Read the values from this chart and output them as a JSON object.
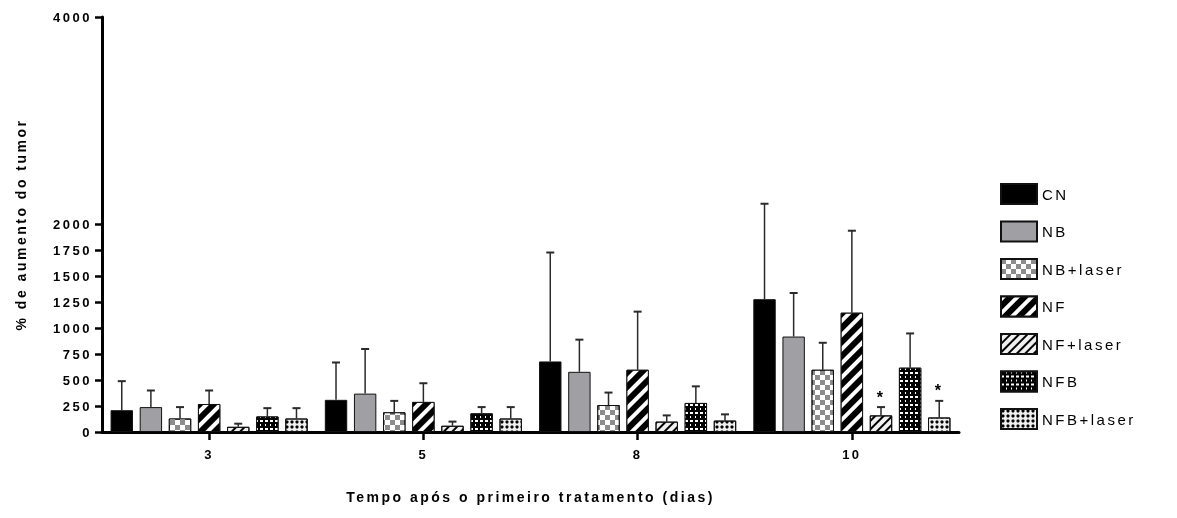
{
  "chart_data": {
    "type": "bar",
    "xlabel": "Tempo após o primeiro tratamento (dias)",
    "ylabel": "% de aumento do tumor",
    "categories": [
      "3",
      "5",
      "8",
      "10"
    ],
    "series": [
      {
        "name": "CN",
        "color": "#000000",
        "values": [
          210,
          310,
          680,
          1280
        ],
        "errors": [
          [
            210,
            490
          ],
          [
            310,
            670
          ],
          [
            680,
            1730
          ],
          [
            1280,
            2200
          ]
        ]
      },
      {
        "name": "NB",
        "color": "#a0a0a4",
        "values": [
          240,
          370,
          580,
          920
        ],
        "errors": [
          [
            240,
            400
          ],
          [
            370,
            800
          ],
          [
            580,
            890
          ],
          [
            920,
            1340
          ]
        ]
      },
      {
        "name": "NB+laser",
        "color": "#8c8c8c",
        "values": [
          130,
          190,
          260,
          600
        ],
        "errors": [
          [
            130,
            240
          ],
          [
            190,
            300
          ],
          [
            260,
            380
          ],
          [
            600,
            860
          ]
        ]
      },
      {
        "name": "NF",
        "color": "#000000",
        "values": [
          270,
          290,
          600,
          1150
        ],
        "errors": [
          [
            270,
            400
          ],
          [
            290,
            470
          ],
          [
            600,
            1160
          ],
          [
            1150,
            1940
          ]
        ]
      },
      {
        "name": "NF+laser",
        "color": "#f0f0f0",
        "values": [
          50,
          60,
          100,
          160
        ],
        "errors": [
          [
            50,
            80
          ],
          [
            60,
            100
          ],
          [
            100,
            160
          ],
          [
            160,
            240
          ]
        ],
        "value_labels": [
          null,
          null,
          null,
          "*"
        ]
      },
      {
        "name": "NFB",
        "color": "#000000",
        "values": [
          150,
          180,
          280,
          620
        ],
        "errors": [
          [
            150,
            230
          ],
          [
            180,
            240
          ],
          [
            280,
            440
          ],
          [
            620,
            950
          ]
        ]
      },
      {
        "name": "NFB+laser",
        "color": "#f0f0f0",
        "values": [
          130,
          130,
          110,
          140
        ],
        "errors": [
          [
            130,
            230
          ],
          [
            130,
            240
          ],
          [
            110,
            170
          ],
          [
            140,
            300
          ]
        ],
        "value_labels": [
          null,
          null,
          null,
          "*"
        ]
      }
    ],
    "ylim": [
      0,
      4000
    ],
    "yticks": [
      0,
      250,
      500,
      750,
      1000,
      1250,
      1500,
      1750,
      2000,
      4000
    ],
    "legend": "right"
  }
}
